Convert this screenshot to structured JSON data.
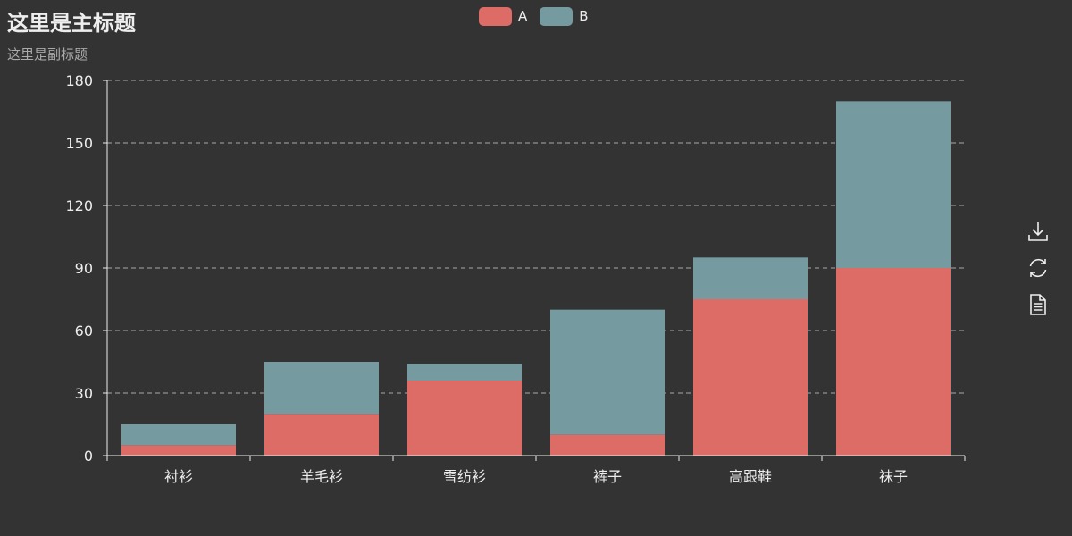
{
  "title": "这里是主标题",
  "subtitle": "这里是副标题",
  "colors": {
    "background": "#333333",
    "A": "#dd6b66",
    "B": "#759aa0",
    "text": "#eeeeee",
    "subtext": "#aaaaaa",
    "axis": "#eeeeee"
  },
  "legend": [
    {
      "name": "A",
      "color": "#dd6b66"
    },
    {
      "name": "B",
      "color": "#759aa0"
    }
  ],
  "toolbox": [
    {
      "name": "download-icon"
    },
    {
      "name": "refresh-icon"
    },
    {
      "name": "data-view-icon"
    }
  ],
  "chart_data": {
    "type": "bar",
    "stacked": true,
    "categories": [
      "衬衫",
      "羊毛衫",
      "雪纺衫",
      "裤子",
      "高跟鞋",
      "袜子"
    ],
    "series": [
      {
        "name": "A",
        "values": [
          5,
          20,
          36,
          10,
          75,
          90
        ]
      },
      {
        "name": "B",
        "values": [
          10,
          25,
          8,
          60,
          20,
          80
        ]
      }
    ],
    "ylim": [
      0,
      180
    ],
    "yticks": [
      0,
      30,
      60,
      90,
      120,
      150,
      180
    ],
    "grid": true,
    "legend_position": "top-center"
  }
}
